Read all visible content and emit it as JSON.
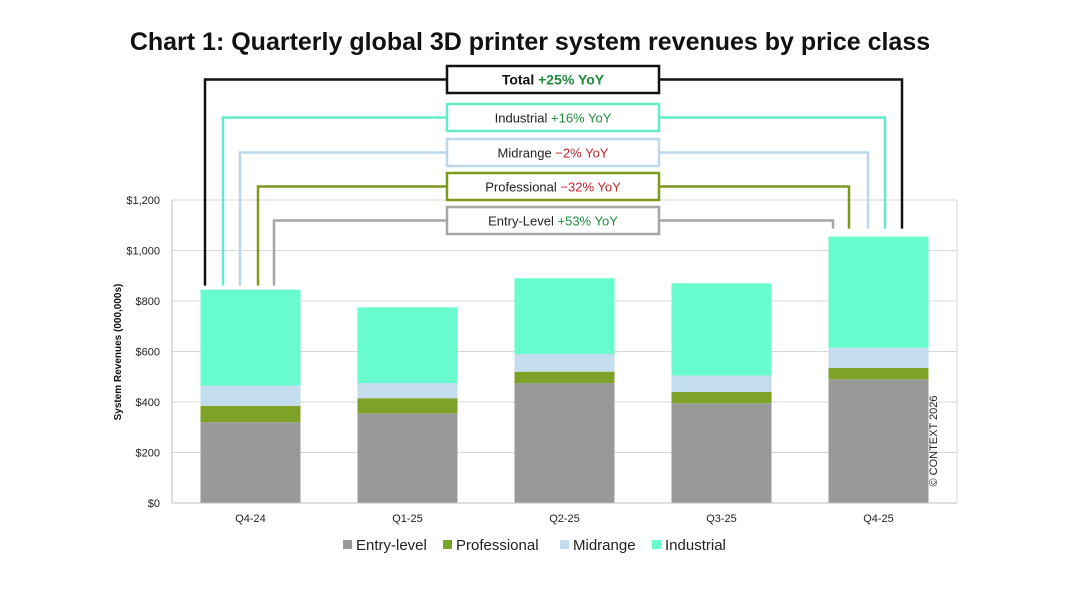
{
  "chart_data": {
    "type": "bar",
    "stacked": true,
    "title": "Chart 1: Quarterly global 3D printer system revenues by price class",
    "ylabel": "System Revenues (000,000s)",
    "xlabel": "",
    "ylim": [
      0,
      1200
    ],
    "y_ticks": [
      "$0",
      "$200",
      "$400",
      "$600",
      "$800",
      "$1,000",
      "$1,200"
    ],
    "y_tick_values": [
      0,
      200,
      400,
      600,
      800,
      1000,
      1200
    ],
    "grid": true,
    "legend_position": "bottom",
    "categories": [
      "Q4-24",
      "Q1-25",
      "Q2-25",
      "Q3-25",
      "Q4-25"
    ],
    "series": [
      {
        "name": "Entry-level",
        "color": "#999999",
        "values": [
          320,
          355,
          475,
          395,
          490
        ]
      },
      {
        "name": "Professional",
        "color": "#7ea127",
        "values": [
          65,
          60,
          45,
          45,
          45
        ]
      },
      {
        "name": "Midrange",
        "color": "#c3dcee",
        "values": [
          80,
          60,
          70,
          65,
          80
        ]
      },
      {
        "name": "Industrial",
        "color": "#67fbcd",
        "values": [
          380,
          300,
          300,
          365,
          440
        ]
      }
    ],
    "annotations": [
      {
        "label": "Total",
        "change": "+25% YoY",
        "change_color": "#1e8b3c",
        "border": "#111111",
        "bold": true
      },
      {
        "label": "Industrial",
        "change": "+16% YoY",
        "change_color": "#1e8b3c",
        "border": "#62ecc8",
        "bold": false
      },
      {
        "label": "Midrange",
        "change": "−2% YoY",
        "change_color": "#c0262d",
        "border": "#bcd7ea",
        "bold": false
      },
      {
        "label": "Professional",
        "change": "−32% YoY",
        "change_color": "#c0262d",
        "border": "#7a9a1e",
        "bold": false
      },
      {
        "label": "Entry-Level",
        "change": "+53% YoY",
        "change_color": "#1e8b3c",
        "border": "#a6a6a6",
        "bold": false
      }
    ],
    "copyright": "© CONTEXT 2026"
  }
}
